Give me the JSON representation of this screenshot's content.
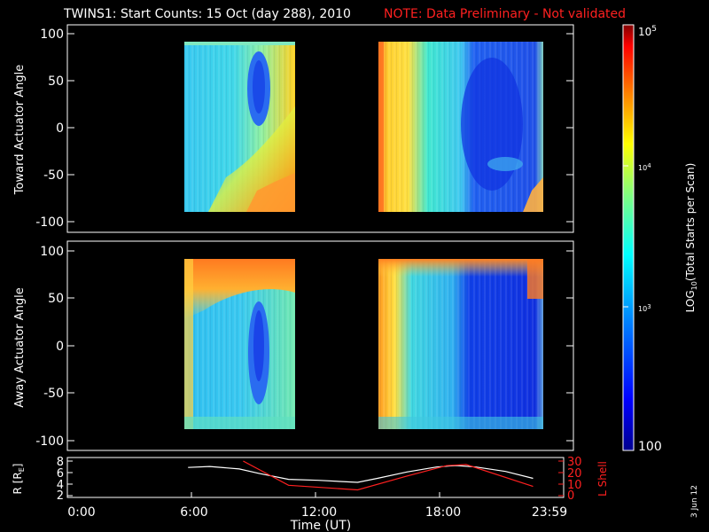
{
  "header": {
    "title": "TWINS1: Start Counts: 15 Oct (day 288), 2010",
    "note": "NOTE: Data Preliminary - Not validated"
  },
  "colorbar": {
    "label": "LOG",
    "label_sub": "10",
    "label_rest": "(Total Starts per Scan)",
    "tick_top_base": "10",
    "tick_top_exp": "5",
    "tick_mid_base": "10",
    "tick_mid_exp": "4",
    "tick_low_base": "10",
    "tick_low_exp": "3",
    "tick_bottom": "100",
    "range": [
      100,
      100000
    ],
    "scale": "log",
    "colors": [
      "#00008f",
      "#0000ff",
      "#0080ff",
      "#00ffff",
      "#80ff80",
      "#ffff00",
      "#ff8000",
      "#ff0000",
      "#800000"
    ]
  },
  "xaxis": {
    "label": "Time (UT)",
    "ticks": [
      "0:00",
      "6:00",
      "12:00",
      "18:00",
      "23:59"
    ]
  },
  "date_stamp": "3 Jun 12",
  "chart_data": [
    {
      "type": "heatmap",
      "ylabel": "Toward Actuator Angle",
      "ylim": [
        -110,
        110
      ],
      "yticks": [
        "100",
        "50",
        "0",
        "-50",
        "-100"
      ],
      "xlim": [
        0,
        24
      ],
      "data_intervals_ut_hours": [
        [
          5.4,
          10.6
        ],
        [
          14.0,
          22.9
        ]
      ]
    },
    {
      "type": "heatmap",
      "ylabel": "Away Actuator Angle",
      "ylim": [
        -110,
        110
      ],
      "yticks": [
        "100",
        "50",
        "0",
        "-50",
        "-100"
      ],
      "xlim": [
        0,
        24
      ],
      "data_intervals_ut_hours": [
        [
          5.4,
          10.6
        ],
        [
          14.0,
          22.9
        ]
      ]
    },
    {
      "type": "line",
      "ylabel": "R [R",
      "ylabel_sub": "E",
      "ylabel_end": "]",
      "yticks": [
        "8",
        "6",
        "4",
        "2"
      ],
      "ylim": [
        1.5,
        8.5
      ],
      "y2label": "L Shell",
      "y2ticks": [
        "30",
        "20",
        "10",
        "0"
      ],
      "y2lim": [
        0,
        30
      ],
      "xlim": [
        0,
        24
      ],
      "series": [
        {
          "color": "#ffffff",
          "x": [
            5.4,
            6.5,
            8.0,
            9.0,
            10.5,
            12.0,
            14.0,
            15.0,
            16.5,
            18.0,
            19.0,
            20.0,
            21.5,
            22.9
          ],
          "y": [
            7.2,
            7.4,
            6.9,
            6.0,
            4.8,
            4.6,
            4.2,
            5.0,
            6.3,
            7.3,
            7.6,
            7.3,
            6.4,
            5.0
          ]
        },
        {
          "color": "#ff2020",
          "x": [
            8.2,
            10.5,
            14.0,
            16.5,
            18.5,
            19.5,
            22.9
          ],
          "y": [
            30,
            9,
            5,
            17,
            26,
            27,
            8
          ]
        }
      ]
    }
  ]
}
